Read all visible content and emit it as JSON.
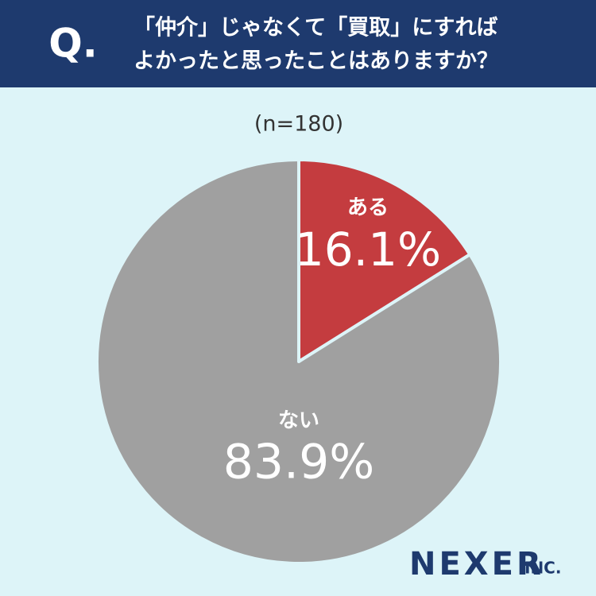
{
  "chart_data": {
    "type": "pie",
    "question_mark": "Q.",
    "title": [
      "「仲介」じゃなくて「買取」にすれば",
      "よかったと思ったことはありますか？"
    ],
    "subtitle": "(n=180)",
    "categories": [
      "ある",
      "ない"
    ],
    "values": [
      16.1,
      83.9
    ],
    "value_labels": [
      "16.1%",
      "83.9%"
    ],
    "colors": [
      "#c43c3f",
      "#a0a0a0"
    ],
    "logo": {
      "name": "NEXER",
      "suffix": "INC."
    }
  }
}
